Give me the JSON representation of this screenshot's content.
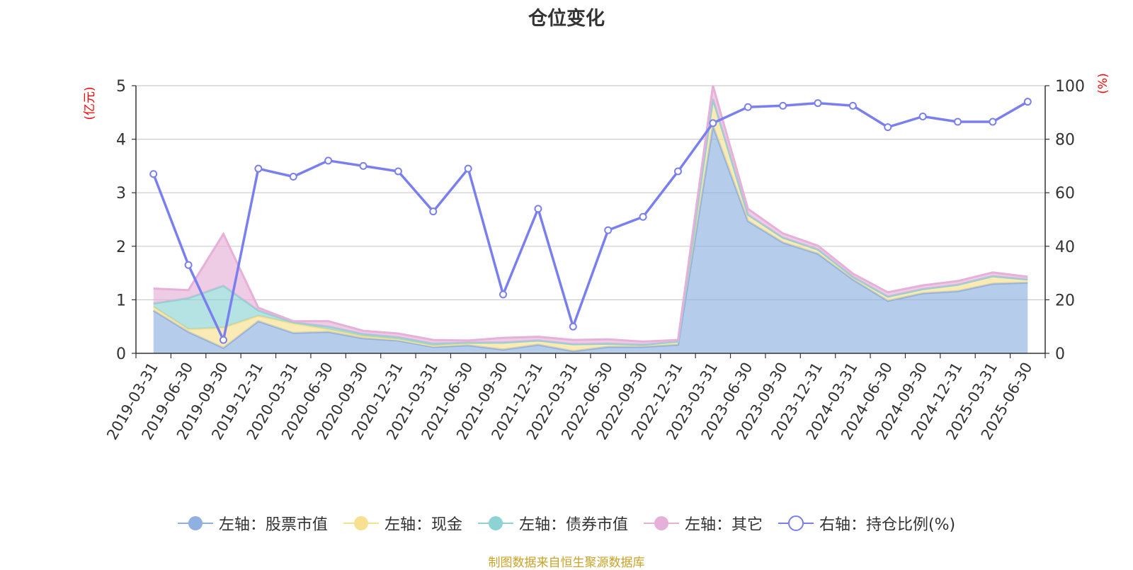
{
  "chart_data": {
    "type": "area",
    "title": "仓位变化",
    "categories": [
      "2019-03-31",
      "2019-06-30",
      "2019-09-30",
      "2019-12-31",
      "2020-03-31",
      "2020-06-30",
      "2020-09-30",
      "2020-12-31",
      "2021-03-31",
      "2021-06-30",
      "2021-09-30",
      "2021-12-31",
      "2022-03-31",
      "2022-06-30",
      "2022-09-30",
      "2022-12-31",
      "2023-03-31",
      "2023-06-30",
      "2023-09-30",
      "2023-12-31",
      "2024-03-31",
      "2024-06-30",
      "2024-09-30",
      "2024-12-31",
      "2025-03-31",
      "2025-06-30"
    ],
    "left_axis": {
      "unit_label": "(亿元)",
      "ylim": [
        0,
        5
      ],
      "ticks": [
        "0",
        "1",
        "2",
        "3",
        "4",
        "5"
      ]
    },
    "right_axis": {
      "unit_label": "(%)",
      "ylim": [
        0,
        100
      ],
      "ticks": [
        "0",
        "20",
        "40",
        "60",
        "80",
        "100"
      ]
    },
    "grid": true,
    "legend_position": "bottom",
    "stacked": true,
    "series": [
      {
        "name": "左轴：股票市值",
        "axis": "left",
        "kind": "area",
        "color": "#8fb0e0",
        "values": [
          0.8,
          0.4,
          0.1,
          0.6,
          0.38,
          0.4,
          0.28,
          0.24,
          0.12,
          0.15,
          0.07,
          0.16,
          0.04,
          0.12,
          0.12,
          0.16,
          4.25,
          2.47,
          2.07,
          1.86,
          1.38,
          0.98,
          1.12,
          1.16,
          1.3,
          1.32
        ]
      },
      {
        "name": "左轴：现金",
        "axis": "left",
        "kind": "area",
        "color": "#f7e08f",
        "values": [
          0.07,
          0.05,
          0.38,
          0.1,
          0.18,
          0.05,
          0.04,
          0.02,
          0.02,
          0.04,
          0.13,
          0.08,
          0.13,
          0.06,
          0.04,
          0.06,
          0.5,
          0.12,
          0.09,
          0.08,
          0.05,
          0.08,
          0.08,
          0.12,
          0.14,
          0.06
        ]
      },
      {
        "name": "左轴：债券市值",
        "axis": "left",
        "kind": "area",
        "color": "#8ed3d3",
        "values": [
          0.06,
          0.58,
          0.78,
          0.1,
          0.02,
          0.05,
          0.04,
          0.04,
          0.04,
          0.01,
          0,
          0,
          0,
          0,
          0,
          0,
          0,
          0,
          0,
          0,
          0,
          0,
          0,
          0,
          0,
          0
        ]
      },
      {
        "name": "左轴：其它",
        "axis": "left",
        "kind": "area",
        "color": "#e6b0d8",
        "values": [
          0.28,
          0.15,
          0.97,
          0.05,
          0.02,
          0.1,
          0.06,
          0.07,
          0.07,
          0.04,
          0.09,
          0.07,
          0.08,
          0.08,
          0.06,
          0.03,
          0.25,
          0.11,
          0.08,
          0.07,
          0.06,
          0.08,
          0.07,
          0.07,
          0.07,
          0.05
        ]
      },
      {
        "name": "右轴：持仓比例(%)",
        "axis": "right",
        "kind": "line",
        "color": "#7a7ff0",
        "values": [
          67,
          33,
          5,
          69,
          66,
          72,
          70,
          68,
          53,
          69,
          22,
          54,
          10,
          46,
          51,
          68,
          86,
          92,
          92.5,
          93.5,
          92.5,
          84.5,
          88.5,
          86.5,
          86.5,
          94
        ]
      }
    ]
  },
  "footer": {
    "text": "制图数据来自恒生聚源数据库"
  }
}
